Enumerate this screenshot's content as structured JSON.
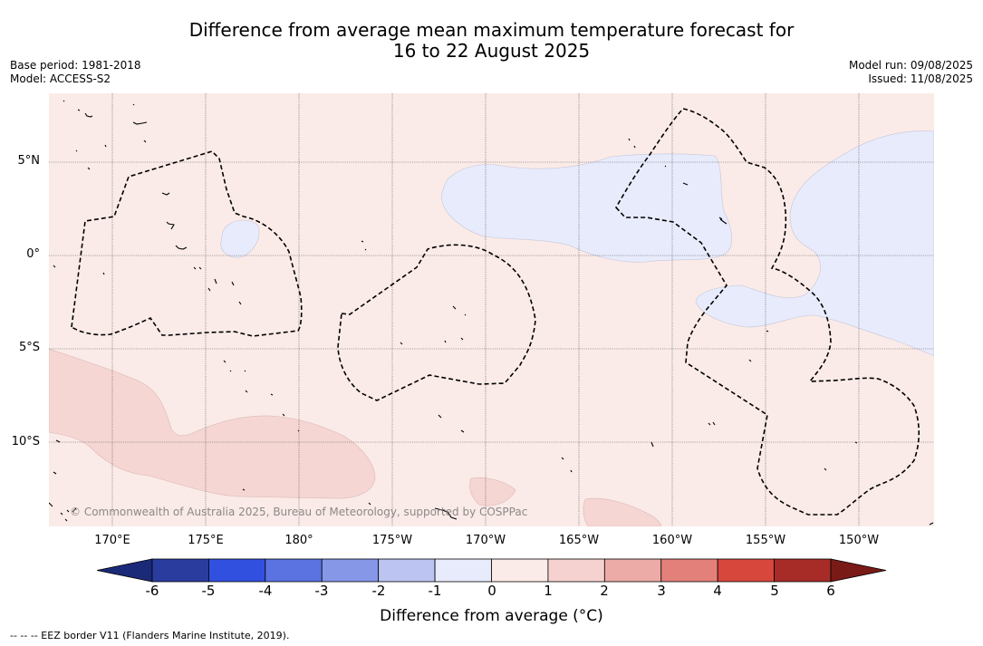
{
  "title": {
    "line1": "Difference from average mean maximum temperature forecast for",
    "line2": "16 to 22 August 2025"
  },
  "meta": {
    "base_period": "Base period: 1981-2018",
    "model": "Model: ACCESS-S2",
    "model_run": "Model run: 09/08/2025",
    "issued": "Issued: 11/08/2025"
  },
  "map": {
    "lat_labels": [
      "5°N",
      "0°",
      "5°S",
      "10°S"
    ],
    "lon_labels": [
      "170°E",
      "175°E",
      "180°",
      "175°W",
      "170°W",
      "165°W",
      "160°W",
      "155°W",
      "150°W"
    ],
    "copyright": "© Commonwealth of Australia 2025, Bureau of Meteorology, supported by COSPPac"
  },
  "colorbar": {
    "ticks": [
      "-6",
      "-5",
      "-4",
      "-3",
      "-2",
      "-1",
      "0",
      "1",
      "2",
      "3",
      "4",
      "5",
      "6"
    ],
    "label": "Difference from average (°C)",
    "colors": [
      "#2a3c9e",
      "#3250e0",
      "#5a73e0",
      "#8697e8",
      "#bcc4f2",
      "#e8ebfb",
      "#fbebe8",
      "#f5d2cf",
      "#ecaba6",
      "#e4807a",
      "#d7473c",
      "#a72c27"
    ],
    "extend_low": "#1a2a78",
    "extend_high": "#7a1a16"
  },
  "legend": {
    "eez_note": "--  --  -- EEZ border V11 (Flanders Marine Institute, 2019)."
  }
}
